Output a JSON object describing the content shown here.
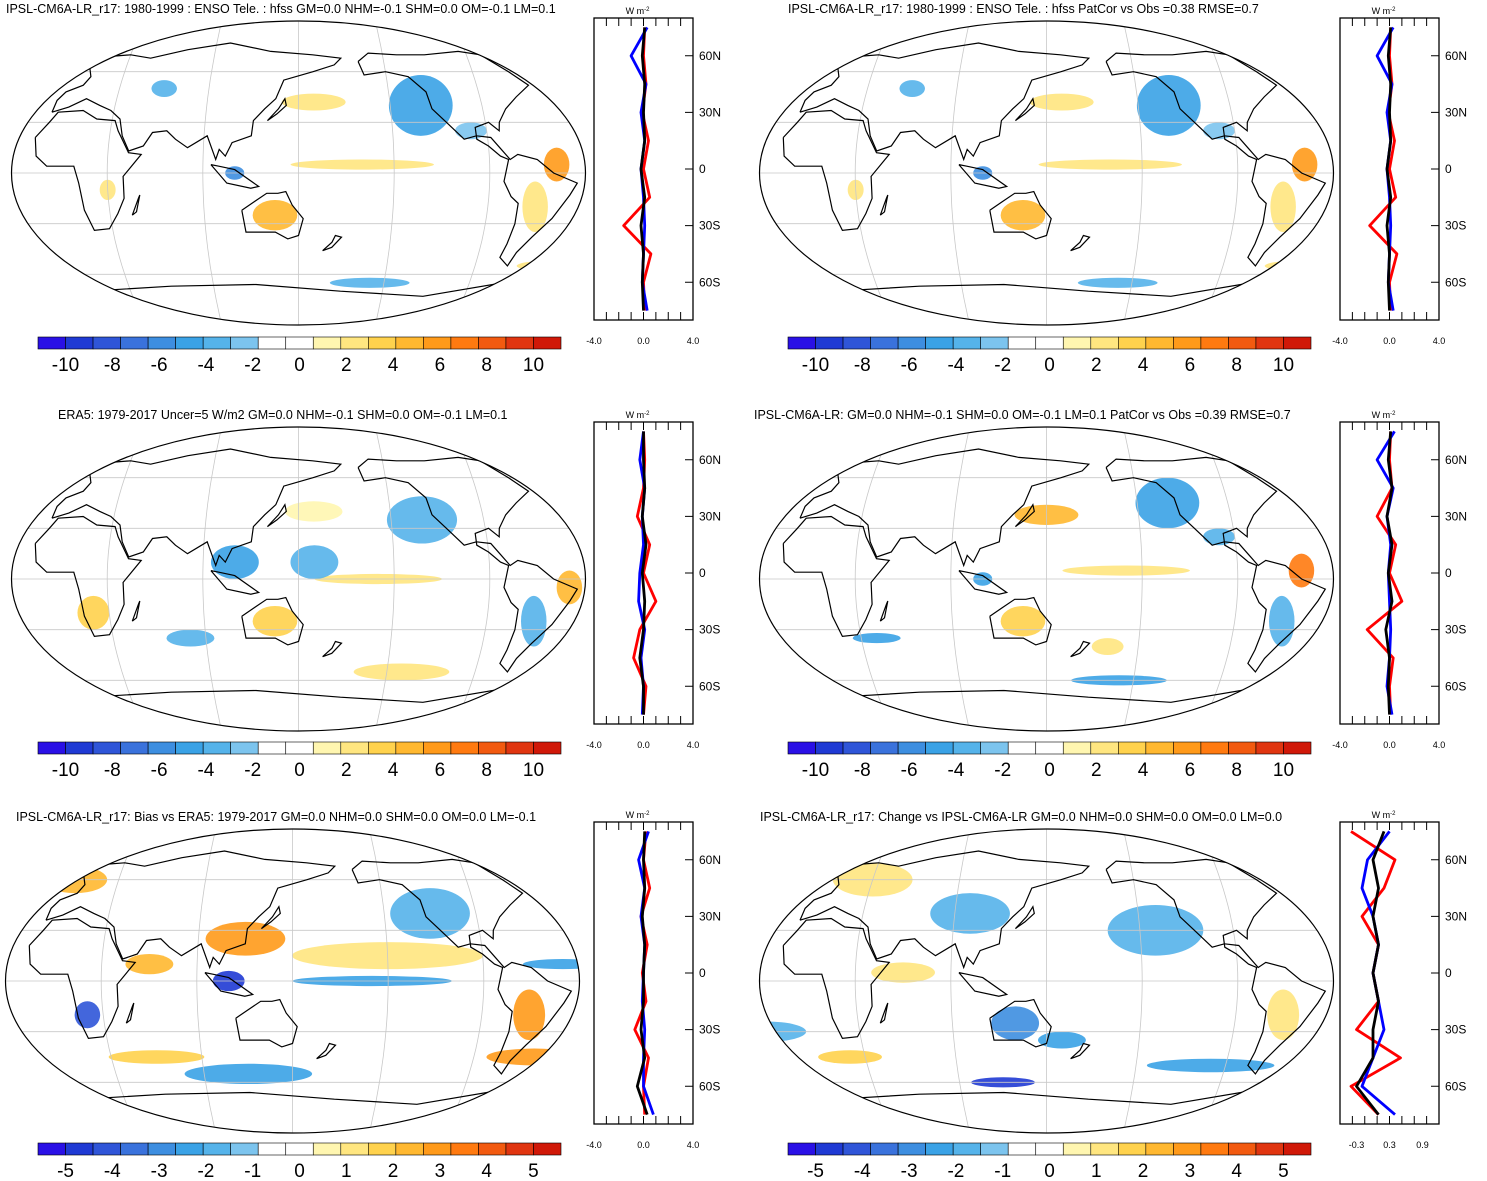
{
  "palette_main": [
    "#2a10e6",
    "#1f3ad4",
    "#2f55d8",
    "#3a72dc",
    "#3d8ee0",
    "#3aa2e6",
    "#55b3ea",
    "#7cc4ee",
    "#ffffff",
    "#ffffff",
    "#fff6b0",
    "#ffe680",
    "#ffd24d",
    "#ffb830",
    "#ff9a1a",
    "#ff7a10",
    "#f25a10",
    "#e03510",
    "#d01808"
  ],
  "panels": [
    {
      "id": "p1",
      "title": "IPSL-CM6A-LR_r17: 1980-1999 : ENSO Tele. : hfss GM=0.0 NHM=-0.1 SHM=0.0 OM=-0.1 LM=0.1",
      "colorbar": {
        "labels": [
          "-10",
          "-8",
          "-6",
          "-4",
          "-2",
          "0",
          "2",
          "4",
          "6",
          "8",
          "10"
        ]
      },
      "zonal": {
        "unit": "W m",
        "unit_sup": "-2",
        "xticks": [
          "-4.0",
          "0.0",
          "4.0"
        ],
        "lat_labels": [
          "60N",
          "30N",
          "0",
          "30S",
          "60S"
        ]
      }
    },
    {
      "id": "p2",
      "title": "IPSL-CM6A-LR_r17: 1980-1999 : ENSO Tele. : hfss PatCor vs Obs =0.38 RMSE=0.7",
      "colorbar": {
        "labels": [
          "-10",
          "-8",
          "-6",
          "-4",
          "-2",
          "0",
          "2",
          "4",
          "6",
          "8",
          "10"
        ]
      },
      "zonal": {
        "unit": "W m",
        "unit_sup": "-2",
        "xticks": [
          "-4.0",
          "0.0",
          "4.0"
        ],
        "lat_labels": [
          "60N",
          "30N",
          "0",
          "30S",
          "60S"
        ]
      }
    },
    {
      "id": "p3",
      "title": "ERA5: 1979-2017 Uncer=5 W/m2 GM=0.0 NHM=-0.1 SHM=0.0 OM=-0.1 LM=0.1",
      "colorbar": {
        "labels": [
          "-10",
          "-8",
          "-6",
          "-4",
          "-2",
          "0",
          "2",
          "4",
          "6",
          "8",
          "10"
        ]
      },
      "zonal": {
        "unit": "W m",
        "unit_sup": "-2",
        "xticks": [
          "-4.0",
          "0.0",
          "4.0"
        ],
        "lat_labels": [
          "60N",
          "30N",
          "0",
          "30S",
          "60S"
        ]
      }
    },
    {
      "id": "p4",
      "title": "IPSL-CM6A-LR: GM=0.0 NHM=-0.1 SHM=0.0 OM=-0.1 LM=0.1 PatCor vs Obs =0.39 RMSE=0.7",
      "colorbar": {
        "labels": [
          "-10",
          "-8",
          "-6",
          "-4",
          "-2",
          "0",
          "2",
          "4",
          "6",
          "8",
          "10"
        ]
      },
      "zonal": {
        "unit": "W m",
        "unit_sup": "-2",
        "xticks": [
          "-4.0",
          "0.0",
          "4.0"
        ],
        "lat_labels": [
          "60N",
          "30N",
          "0",
          "30S",
          "60S"
        ]
      }
    },
    {
      "id": "p5",
      "title": "IPSL-CM6A-LR_r17: Bias vs ERA5: 1979-2017 GM=0.0 NHM=0.0 SHM=0.0 OM=0.0 LM=-0.1",
      "colorbar": {
        "labels": [
          "-5",
          "-4",
          "-3",
          "-2",
          "-1",
          "0",
          "1",
          "2",
          "3",
          "4",
          "5"
        ]
      },
      "zonal": {
        "unit": "W m",
        "unit_sup": "-2",
        "xticks": [
          "-4.0",
          "0.0",
          "4.0"
        ],
        "lat_labels": [
          "60N",
          "30N",
          "0",
          "30S",
          "60S"
        ]
      }
    },
    {
      "id": "p6",
      "title": "IPSL-CM6A-LR_r17: Change vs IPSL-CM6A-LR GM=0.0 NHM=0.0 SHM=0.0 OM=0.0 LM=0.0",
      "colorbar": {
        "labels": [
          "-5",
          "-4",
          "-3",
          "-2",
          "-1",
          "0",
          "1",
          "2",
          "3",
          "4",
          "5"
        ]
      },
      "zonal": {
        "unit": "W m",
        "unit_sup": "-2",
        "xticks": [
          "-0.3",
          "0.3",
          "0.9"
        ],
        "lat_labels": [
          "60N",
          "30N",
          "0",
          "30S",
          "60S"
        ]
      }
    }
  ],
  "chart_data": [
    {
      "type": "line",
      "title": "IPSL-CM6A-LR_r17: 1980-1999 : ENSO Tele. : hfss GM=0.0 NHM=-0.1 SHM=0.0 OM=-0.1 LM=0.1",
      "xlabel": "W m-2",
      "ylabel": "",
      "xlim": [
        -4,
        4
      ],
      "ylim": [
        -80,
        80
      ],
      "y": [
        75,
        60,
        45,
        30,
        15,
        0,
        -15,
        -30,
        -45,
        -60,
        -75
      ],
      "series": [
        {
          "color": "#ff0000",
          "values": [
            0.1,
            0.0,
            0.2,
            -0.1,
            0.4,
            0.0,
            0.5,
            -1.6,
            0.6,
            0.0,
            0.1
          ]
        },
        {
          "color": "#0000ff",
          "values": [
            0.3,
            -1.0,
            0.2,
            -0.2,
            0.1,
            -0.2,
            0.0,
            0.1,
            0.0,
            -0.1,
            0.3
          ]
        },
        {
          "color": "#000000",
          "values": [
            0.1,
            -0.1,
            0.1,
            0.0,
            0.1,
            -0.2,
            0.1,
            -0.2,
            0.0,
            -0.1,
            0.0
          ]
        }
      ]
    },
    {
      "type": "line",
      "title": "IPSL-CM6A-LR_r17: 1980-1999 : ENSO Tele. : hfss PatCor vs Obs =0.38 RMSE=0.7",
      "xlabel": "W m-2",
      "ylabel": "",
      "xlim": [
        -4,
        4
      ],
      "ylim": [
        -80,
        80
      ],
      "y": [
        75,
        60,
        45,
        30,
        15,
        0,
        -15,
        -30,
        -45,
        -60,
        -75
      ],
      "series": [
        {
          "color": "#ff0000",
          "values": [
            0.1,
            0.0,
            0.2,
            -0.1,
            0.4,
            0.0,
            0.5,
            -1.6,
            0.6,
            0.0,
            0.1
          ]
        },
        {
          "color": "#0000ff",
          "values": [
            0.3,
            -1.0,
            0.2,
            -0.2,
            0.1,
            -0.2,
            0.0,
            0.1,
            0.0,
            -0.1,
            0.3
          ]
        },
        {
          "color": "#000000",
          "values": [
            0.1,
            -0.1,
            0.1,
            0.0,
            0.1,
            -0.2,
            0.1,
            -0.2,
            0.0,
            -0.1,
            0.0
          ]
        }
      ]
    },
    {
      "type": "line",
      "title": "ERA5: 1979-2017 Uncer=5 W/m2 GM=0.0 NHM=-0.1 SHM=0.0 OM=-0.1 LM=0.1",
      "xlabel": "W m-2",
      "ylabel": "",
      "xlim": [
        -4,
        4
      ],
      "ylim": [
        -80,
        80
      ],
      "y": [
        75,
        60,
        45,
        30,
        15,
        0,
        -15,
        -30,
        -45,
        -60,
        -75
      ],
      "series": [
        {
          "color": "#ff0000",
          "values": [
            0.0,
            0.1,
            0.0,
            -0.5,
            0.5,
            0.0,
            1.0,
            -0.3,
            -0.8,
            0.2,
            0.0
          ]
        },
        {
          "color": "#0000ff",
          "values": [
            0.0,
            -0.3,
            0.1,
            -0.1,
            0.0,
            -0.3,
            -0.4,
            0.1,
            -0.2,
            0.0,
            -0.1
          ]
        },
        {
          "color": "#000000",
          "values": [
            0.0,
            0.0,
            0.1,
            -0.1,
            0.2,
            -0.1,
            0.1,
            0.0,
            -0.3,
            0.0,
            0.0
          ]
        }
      ]
    },
    {
      "type": "line",
      "title": "IPSL-CM6A-LR: GM=0.0 NHM=-0.1 SHM=0.0 OM=-0.1 LM=0.1 PatCor vs Obs =0.39 RMSE=0.7",
      "xlabel": "W m-2",
      "ylabel": "",
      "xlim": [
        -4,
        4
      ],
      "ylim": [
        -80,
        80
      ],
      "y": [
        75,
        60,
        45,
        30,
        15,
        0,
        -15,
        -30,
        -45,
        -60,
        -75
      ],
      "series": [
        {
          "color": "#ff0000",
          "values": [
            0.1,
            0.0,
            0.2,
            -1.0,
            0.5,
            0.0,
            1.0,
            -1.8,
            0.3,
            0.0,
            0.1
          ]
        },
        {
          "color": "#0000ff",
          "values": [
            0.4,
            -1.0,
            0.3,
            -0.2,
            0.1,
            -0.1,
            0.0,
            0.1,
            0.0,
            -0.2,
            0.2
          ]
        },
        {
          "color": "#000000",
          "values": [
            0.1,
            -0.1,
            0.2,
            -0.2,
            0.2,
            -0.1,
            0.2,
            -0.3,
            0.0,
            -0.1,
            0.0
          ]
        }
      ]
    },
    {
      "type": "line",
      "title": "IPSL-CM6A-LR_r17: Bias vs ERA5: 1979-2017 GM=0.0 NHM=0.0 SHM=0.0 OM=0.0 LM=-0.1",
      "xlabel": "W m-2",
      "ylabel": "",
      "xlim": [
        -4,
        4
      ],
      "ylim": [
        -80,
        80
      ],
      "y": [
        75,
        60,
        45,
        30,
        15,
        0,
        -15,
        -30,
        -45,
        -60,
        -75
      ],
      "series": [
        {
          "color": "#ff0000",
          "values": [
            0.2,
            0.0,
            0.5,
            -0.2,
            0.3,
            -0.1,
            0.2,
            -0.7,
            0.4,
            0.0,
            0.1
          ]
        },
        {
          "color": "#0000ff",
          "values": [
            0.4,
            -0.4,
            0.1,
            -0.2,
            0.1,
            0.0,
            -0.1,
            0.1,
            0.0,
            0.0,
            0.8
          ]
        },
        {
          "color": "#000000",
          "values": [
            0.1,
            0.0,
            0.1,
            -0.1,
            0.1,
            0.0,
            0.0,
            -0.2,
            0.1,
            -0.5,
            0.3
          ]
        }
      ]
    },
    {
      "type": "line",
      "title": "IPSL-CM6A-LR_r17: Change vs IPSL-CM6A-LR GM=0.0 NHM=0.0 SHM=0.0 OM=0.0 LM=0.0",
      "xlabel": "W m-2",
      "ylabel": "",
      "xlim": [
        -0.6,
        1.2
      ],
      "ylim": [
        -80,
        80
      ],
      "y": [
        75,
        60,
        45,
        30,
        15,
        0,
        -15,
        -30,
        -45,
        -60,
        -75
      ],
      "series": [
        {
          "color": "#ff0000",
          "values": [
            -0.4,
            0.4,
            0.2,
            -0.2,
            0.1,
            0.0,
            0.1,
            -0.3,
            0.5,
            -0.4,
            0.1
          ]
        },
        {
          "color": "#0000ff",
          "values": [
            0.3,
            -0.1,
            -0.2,
            0.0,
            0.1,
            0.0,
            0.1,
            0.2,
            0.0,
            -0.2,
            0.4
          ]
        },
        {
          "color": "#000000",
          "values": [
            0.2,
            0.0,
            0.1,
            0.0,
            0.1,
            0.0,
            0.1,
            0.0,
            0.0,
            -0.3,
            0.1
          ]
        }
      ]
    }
  ]
}
